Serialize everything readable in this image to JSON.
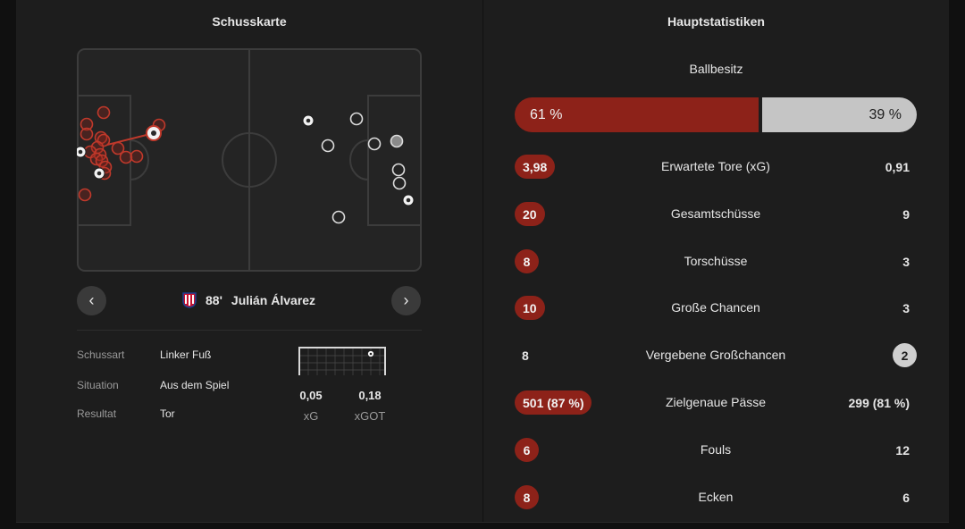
{
  "left": {
    "title": "Schusskarte",
    "shot": {
      "minute": "88'",
      "player": "Julián Álvarez"
    },
    "details": [
      {
        "label": "Schussart",
        "value": "Linker Fuß"
      },
      {
        "label": "Situation",
        "value": "Aus dem Spiel"
      },
      {
        "label": "Resultat",
        "value": "Tor"
      }
    ],
    "metrics": [
      {
        "value": "0,05",
        "label": "xG"
      },
      {
        "value": "0,18",
        "label": "xGOT"
      }
    ],
    "icons": {
      "prev": "chevron-left-icon",
      "next": "chevron-right-icon",
      "crest": "atletico-crest-icon",
      "goal": "goal-frame-icon"
    }
  },
  "right": {
    "title": "Hauptstatistiken",
    "possession": {
      "label": "Ballbesitz",
      "home": "61 %",
      "away": "39 %",
      "home_fraction": 0.61
    },
    "stats": [
      {
        "label": "Erwartete Tore (xG)",
        "home": "3,98",
        "away": "0,91",
        "leader": "home"
      },
      {
        "label": "Gesamtschüsse",
        "home": "20",
        "away": "9",
        "leader": "home"
      },
      {
        "label": "Torschüsse",
        "home": "8",
        "away": "3",
        "leader": "home"
      },
      {
        "label": "Große Chancen",
        "home": "10",
        "away": "3",
        "leader": "home"
      },
      {
        "label": "Vergebene Großchancen",
        "home": "8",
        "away": "2",
        "leader": "away"
      },
      {
        "label": "Zielgenaue Pässe",
        "home": "501 (87 %)",
        "away": "299 (81 %)",
        "leader": "home"
      },
      {
        "label": "Fouls",
        "home": "6",
        "away": "12",
        "leader": "home"
      },
      {
        "label": "Ecken",
        "home": "8",
        "away": "6",
        "leader": "home"
      }
    ]
  },
  "colors": {
    "home": "#8d2219",
    "home_marker": "#c0392b",
    "away_bar": "#c5c5c5",
    "panel": "#1d1d1d"
  }
}
